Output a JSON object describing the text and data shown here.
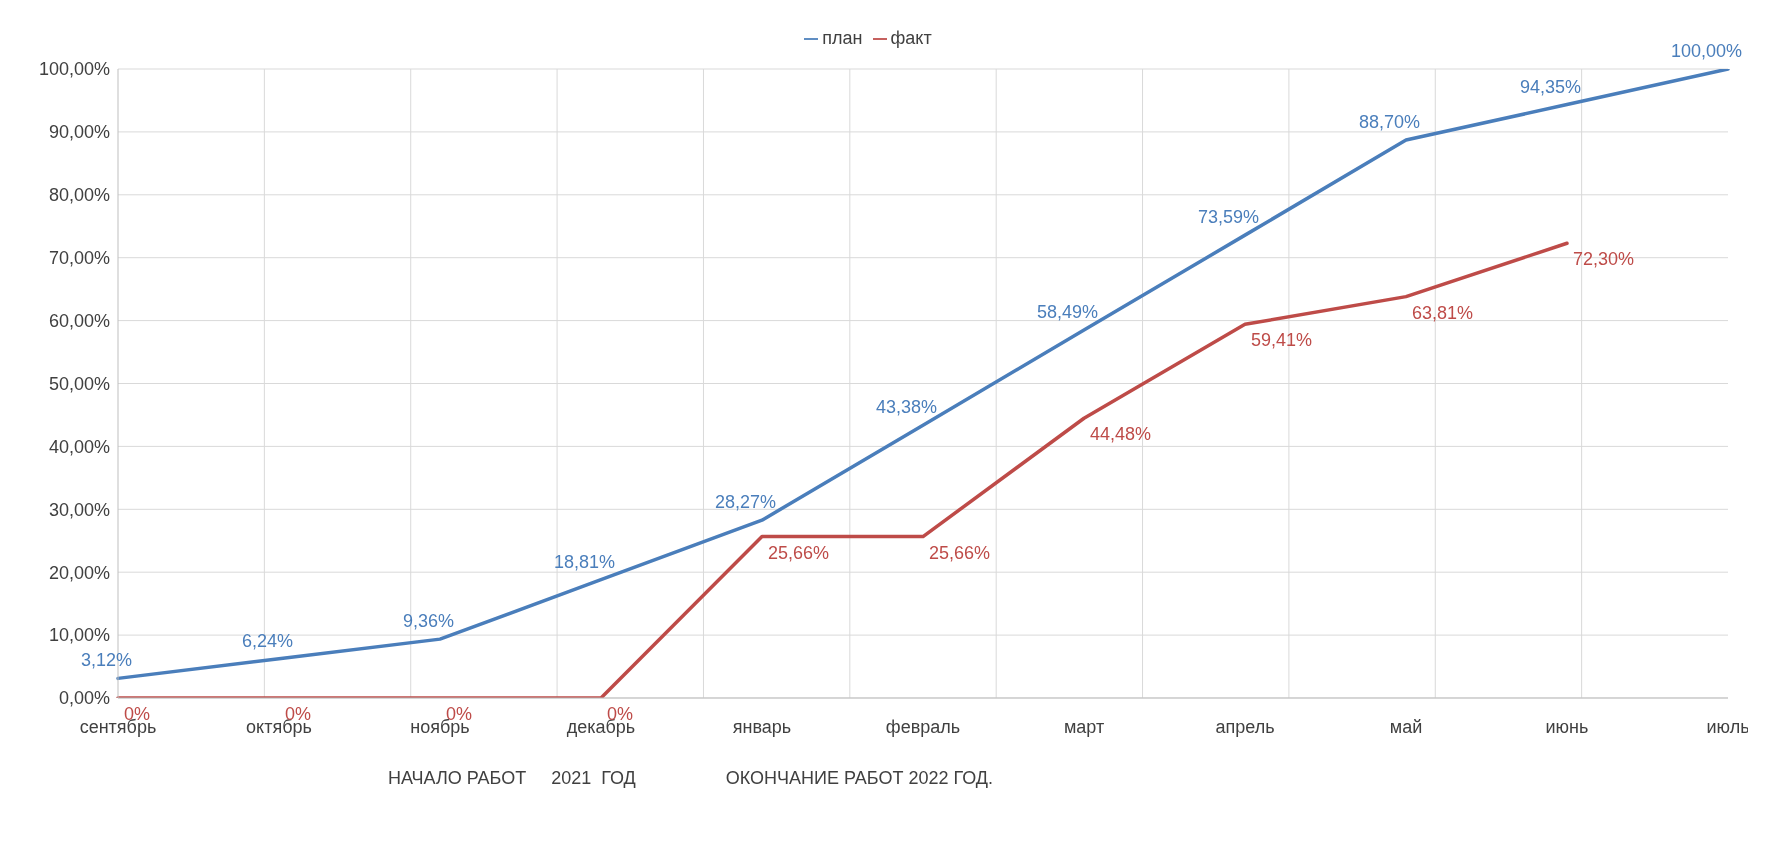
{
  "chart_data": {
    "type": "line",
    "categories": [
      "сентябрь",
      "октябрь",
      "ноябрь",
      "декабрь",
      "январь",
      "февраль",
      "март",
      "апрель",
      "май",
      "июнь",
      "июль"
    ],
    "series": [
      {
        "name": "план",
        "color": "#4a7ebb",
        "values": [
          3.12,
          6.24,
          9.36,
          18.81,
          28.27,
          43.38,
          58.49,
          73.59,
          88.7,
          94.35,
          100.0
        ],
        "value_labels": [
          "3,12%",
          "6,24%",
          "9,36%",
          "18,81%",
          "28,27%",
          "43,38%",
          "58,49%",
          "73,59%",
          "88,70%",
          "94,35%",
          "100,00%"
        ]
      },
      {
        "name": "факт",
        "color": "#be4b48",
        "values": [
          0,
          0,
          0,
          0,
          25.66,
          25.66,
          44.48,
          59.41,
          63.81,
          72.3,
          null
        ],
        "value_labels": [
          "0%",
          "0%",
          "0%",
          "0%",
          "25,66%",
          "25,66%",
          "44,48%",
          "59,41%",
          "63,81%",
          "72,30%",
          null
        ]
      }
    ],
    "ylim": [
      0,
      100
    ],
    "yticks": [
      {
        "value": 0,
        "label": "0,00%"
      },
      {
        "value": 10,
        "label": "10,00%"
      },
      {
        "value": 20,
        "label": "20,00%"
      },
      {
        "value": 30,
        "label": "30,00%"
      },
      {
        "value": 40,
        "label": "40,00%"
      },
      {
        "value": 50,
        "label": "50,00%"
      },
      {
        "value": 60,
        "label": "60,00%"
      },
      {
        "value": 70,
        "label": "70,00%"
      },
      {
        "value": 80,
        "label": "80,00%"
      },
      {
        "value": 90,
        "label": "90,00%"
      },
      {
        "value": 100,
        "label": "100,00%"
      }
    ],
    "grid": true,
    "legend": "top",
    "marker": "none",
    "line_style": "solid",
    "annotations": [
      "НАЧАЛО РАБОТ     2021  ГОД",
      "ОКОНЧАНИЕ РАБОТ 2022 ГОД."
    ]
  }
}
